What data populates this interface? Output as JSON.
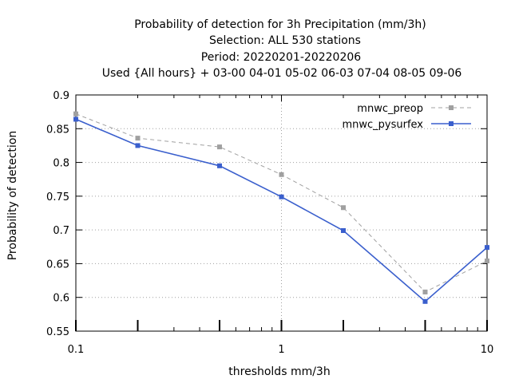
{
  "chart_data": {
    "type": "line",
    "title_lines": [
      "Probability of detection  for 3h Precipitation (mm/3h)",
      "Selection: ALL    530 stations",
      "Period: 20220201-20220206",
      "Used {All hours} + 03-00 04-01 05-02 06-03 07-04 08-05 09-06"
    ],
    "xlabel": "thresholds mm/3h",
    "ylabel": "Probability of detection",
    "x_scale": "log",
    "xlim": [
      0.1,
      10
    ],
    "ylim": [
      0.55,
      0.9
    ],
    "x_ticks": [
      0.1,
      1,
      10
    ],
    "x_tick_labels": [
      "0.1",
      "1",
      "10"
    ],
    "y_ticks": [
      0.55,
      0.6,
      0.65,
      0.7,
      0.75,
      0.8,
      0.85,
      0.9
    ],
    "y_tick_labels": [
      "0.55",
      "0.6",
      "0.65",
      "0.7",
      "0.75",
      "0.8",
      "0.85",
      "0.9"
    ],
    "grid": true,
    "legend_position": "top-right",
    "x": [
      0.1,
      0.2,
      0.5,
      1,
      2,
      5,
      10
    ],
    "series": [
      {
        "name": "mnwc_preop",
        "values": [
          0.872,
          0.836,
          0.823,
          0.782,
          0.733,
          0.608,
          0.654
        ],
        "color": "#a0a0a0",
        "dashed": true
      },
      {
        "name": "mnwc_pysurfex",
        "values": [
          0.864,
          0.825,
          0.795,
          0.749,
          0.699,
          0.594,
          0.674
        ],
        "color": "#3a5fcd",
        "dashed": false
      }
    ]
  }
}
